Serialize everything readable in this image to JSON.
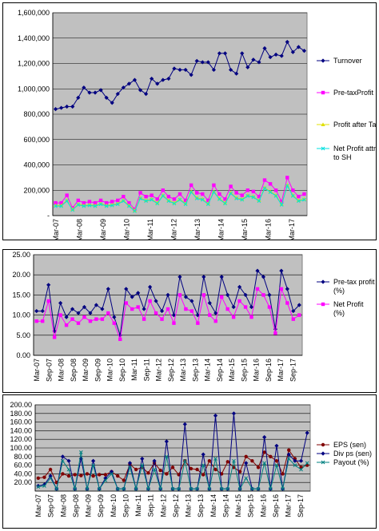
{
  "chart_data": [
    {
      "type": "line",
      "title": "",
      "xlabel": "",
      "ylabel": "",
      "ylim": [
        0,
        1600000
      ],
      "yticks": [
        0,
        200000,
        400000,
        600000,
        800000,
        1000000,
        1200000,
        1400000,
        1600000
      ],
      "ytick_labels": [
        "-",
        "200,000",
        "400,000",
        "600,000",
        "800,000",
        "1,000,000",
        "1,200,000",
        "1,400,000",
        "1,600,000"
      ],
      "xtick_labels": [
        "Mar-07",
        "Mar-08",
        "Mar-09",
        "Mar-10",
        "Mar-11",
        "Mar-12",
        "Mar-13",
        "Mar-14",
        "Mar-15",
        "Mar-16",
        "Mar-17"
      ],
      "legend_position": "right",
      "grid": true,
      "series": [
        {
          "name": "Turnover",
          "color": "#000080",
          "marker": "diamond",
          "values": [
            840000,
            850000,
            860000,
            860000,
            930000,
            1010000,
            970000,
            970000,
            990000,
            930000,
            890000,
            960000,
            1010000,
            1040000,
            1070000,
            990000,
            960000,
            1080000,
            1040000,
            1070000,
            1080000,
            1160000,
            1150000,
            1150000,
            1110000,
            1220000,
            1210000,
            1210000,
            1150000,
            1280000,
            1280000,
            1150000,
            1120000,
            1280000,
            1170000,
            1230000,
            1210000,
            1320000,
            1250000,
            1270000,
            1260000,
            1370000,
            1290000,
            1330000,
            1300000
          ]
        },
        {
          "name": "Pre-taxProfit",
          "color": "#ff00ff",
          "marker": "square",
          "values": [
            100000,
            100000,
            160000,
            60000,
            120000,
            100000,
            110000,
            100000,
            120000,
            100000,
            110000,
            120000,
            150000,
            100000,
            50000,
            180000,
            150000,
            160000,
            130000,
            200000,
            150000,
            130000,
            170000,
            120000,
            240000,
            180000,
            170000,
            120000,
            240000,
            170000,
            130000,
            230000,
            180000,
            160000,
            200000,
            190000,
            150000,
            280000,
            250000,
            200000,
            110000,
            300000,
            200000,
            150000,
            170000
          ]
        },
        {
          "name": "Profit after Tax",
          "color": "#e0e000",
          "marker": "triangle",
          "values": [
            80000,
            80000,
            120000,
            50000,
            90000,
            80000,
            85000,
            80000,
            95000,
            80000,
            85000,
            95000,
            120000,
            80000,
            40000,
            140000,
            120000,
            130000,
            100000,
            160000,
            120000,
            100000,
            130000,
            95000,
            190000,
            140000,
            130000,
            95000,
            190000,
            135000,
            100000,
            180000,
            140000,
            130000,
            160000,
            150000,
            120000,
            220000,
            190000,
            160000,
            90000,
            240000,
            160000,
            120000,
            130000
          ]
        },
        {
          "name": "Net Profit attr to SH",
          "color": "#00e0e0",
          "marker": "x",
          "values": [
            75000,
            75000,
            115000,
            45000,
            85000,
            75000,
            80000,
            75000,
            90000,
            75000,
            80000,
            90000,
            115000,
            75000,
            35000,
            135000,
            115000,
            125000,
            95000,
            155000,
            115000,
            95000,
            125000,
            90000,
            185000,
            135000,
            125000,
            90000,
            185000,
            130000,
            95000,
            175000,
            135000,
            125000,
            155000,
            145000,
            115000,
            215000,
            185000,
            155000,
            85000,
            235000,
            155000,
            115000,
            125000
          ]
        }
      ]
    },
    {
      "type": "line",
      "title": "",
      "xlabel": "",
      "ylabel": "",
      "ylim": [
        0,
        25
      ],
      "yticks": [
        0,
        5,
        10,
        15,
        20,
        25
      ],
      "ytick_labels": [
        "0.00",
        "5.00",
        "10.00",
        "15.00",
        "20.00",
        "25.00"
      ],
      "xtick_labels": [
        "Mar-07",
        "Sep-07",
        "Mar-08",
        "Sep-08",
        "Mar-09",
        "Sep-09",
        "Mar-10",
        "Sep-10",
        "Mar-11",
        "Sep-11",
        "Mar-12",
        "Sep-12",
        "Mar-13",
        "Sep-13",
        "Mar-14",
        "Sep-14",
        "Mar-15",
        "Sep-15",
        "Mar-16",
        "Sep-16",
        "Mar-17",
        "Sep-17"
      ],
      "legend_position": "right",
      "grid": true,
      "series": [
        {
          "name": "Pre-tax profit (%)",
          "color": "#000080",
          "marker": "diamond",
          "values": [
            11.0,
            11.0,
            17.5,
            6.0,
            13.0,
            9.5,
            11.5,
            10.5,
            12.0,
            10.5,
            12.5,
            11.5,
            16.5,
            9.5,
            5.0,
            16.5,
            14.5,
            15.5,
            11.5,
            17.0,
            13.5,
            11.0,
            15.0,
            10.0,
            19.5,
            14.5,
            13.5,
            10.0,
            19.5,
            13.0,
            10.5,
            19.5,
            15.0,
            12.0,
            17.0,
            15.0,
            12.0,
            21.0,
            19.5,
            15.0,
            6.5,
            21.0,
            16.5,
            11.0,
            12.5
          ]
        },
        {
          "name": "Net Profit (%)",
          "color": "#ff00ff",
          "marker": "square",
          "values": [
            8.5,
            8.5,
            13.5,
            4.5,
            10.0,
            7.5,
            9.0,
            8.0,
            9.5,
            8.5,
            9.0,
            9.0,
            10.5,
            8.0,
            4.0,
            13.0,
            11.5,
            12.0,
            9.0,
            13.5,
            10.5,
            9.0,
            11.5,
            8.0,
            15.0,
            11.5,
            11.0,
            8.0,
            15.0,
            10.0,
            8.5,
            14.5,
            11.5,
            9.5,
            13.5,
            12.0,
            9.5,
            16.5,
            15.0,
            12.0,
            5.5,
            16.5,
            13.0,
            9.0,
            10.0
          ]
        }
      ]
    },
    {
      "type": "line",
      "title": "",
      "xlabel": "",
      "ylabel": "",
      "ylim": [
        0,
        200
      ],
      "yticks": [
        20,
        40,
        60,
        80,
        100,
        120,
        140,
        160,
        180,
        200
      ],
      "ytick_labels": [
        "20.00",
        "40.00",
        "60.00",
        "80.00",
        "100.00",
        "120.00",
        "140.00",
        "160.00",
        "180.00",
        "200.00"
      ],
      "xtick_labels": [
        "Mar-07",
        "Sep-07",
        "Mar-08",
        "Sep-08",
        "Mar-09",
        "Sep-09",
        "Mar-10",
        "Sep-10",
        "Mar-11",
        "Sep-11",
        "Mar-12",
        "Sep-12",
        "Mar-13",
        "Sep-13",
        "Mar-14",
        "Sep-14",
        "Mar-15",
        "Sep-15",
        "Mar-16",
        "Sep-16",
        "Mar-17",
        "Sep-17"
      ],
      "legend_position": "right",
      "grid": true,
      "series": [
        {
          "name": "EPS (sen)",
          "color": "#800000",
          "marker": "circle",
          "values": [
            30,
            32,
            50,
            20,
            40,
            35,
            38,
            36,
            40,
            35,
            38,
            38,
            45,
            35,
            25,
            62,
            50,
            55,
            42,
            65,
            48,
            40,
            55,
            38,
            70,
            52,
            50,
            38,
            70,
            50,
            40,
            68,
            55,
            45,
            80,
            70,
            55,
            90,
            80,
            70,
            40,
            95,
            75,
            55,
            60
          ]
        },
        {
          "name": "Div ps (sen)",
          "color": "#000080",
          "marker": "diamond",
          "values": [
            12,
            15,
            35,
            5,
            80,
            70,
            5,
            75,
            5,
            70,
            5,
            30,
            45,
            5,
            5,
            65,
            5,
            75,
            5,
            70,
            5,
            115,
            5,
            5,
            155,
            5,
            5,
            85,
            5,
            175,
            5,
            5,
            180,
            5,
            65,
            5,
            5,
            125,
            5,
            105,
            5,
            85,
            70,
            70,
            135
          ]
        },
        {
          "name": "Payout (%)",
          "color": "#008080",
          "marker": "x",
          "values": [
            10,
            12,
            30,
            5,
            70,
            50,
            5,
            90,
            5,
            60,
            5,
            25,
            40,
            5,
            5,
            55,
            5,
            60,
            5,
            50,
            5,
            80,
            5,
            5,
            70,
            5,
            5,
            60,
            5,
            75,
            5,
            5,
            70,
            5,
            30,
            5,
            5,
            65,
            5,
            60,
            5,
            75,
            60,
            50,
            65
          ]
        }
      ]
    }
  ]
}
